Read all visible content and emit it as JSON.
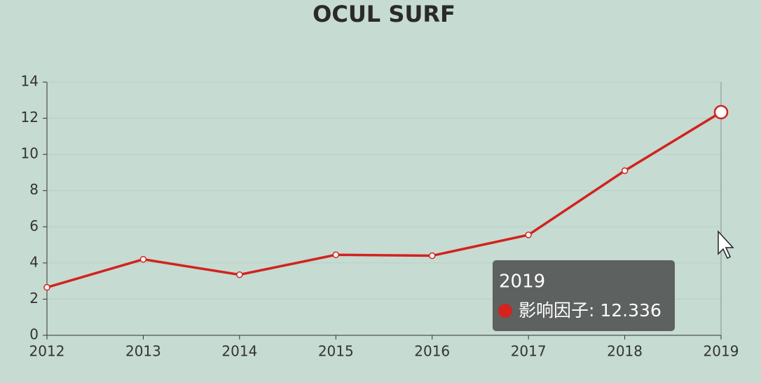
{
  "chart_data": {
    "type": "line",
    "title": "OCUL SURF",
    "categories": [
      "2012",
      "2013",
      "2014",
      "2015",
      "2016",
      "2017",
      "2018",
      "2019"
    ],
    "series": [
      {
        "color": "#d2231e",
        "values": [
          2.65,
          4.2,
          3.35,
          4.45,
          4.4,
          5.55,
          9.1,
          12.336
        ]
      }
    ],
    "ylim": [
      0,
      14
    ],
    "yticks": [
      0,
      2,
      4,
      6,
      8,
      10,
      12,
      14
    ],
    "grid": true,
    "tooltip": {
      "title": "2019",
      "text": "影响因子: 12.336"
    }
  }
}
